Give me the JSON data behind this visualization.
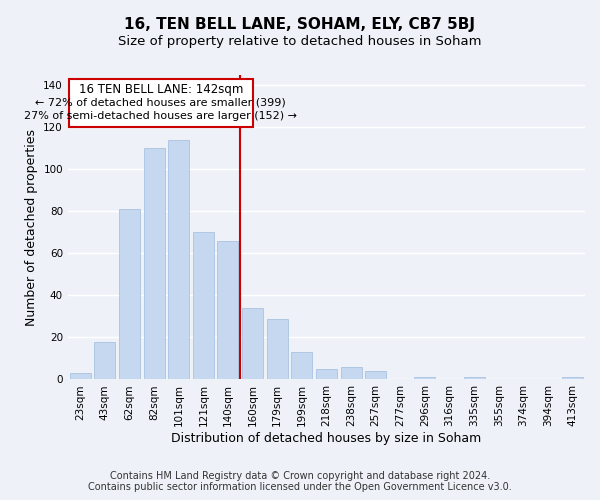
{
  "title": "16, TEN BELL LANE, SOHAM, ELY, CB7 5BJ",
  "subtitle": "Size of property relative to detached houses in Soham",
  "xlabel": "Distribution of detached houses by size in Soham",
  "ylabel": "Number of detached properties",
  "bar_labels": [
    "23sqm",
    "43sqm",
    "62sqm",
    "82sqm",
    "101sqm",
    "121sqm",
    "140sqm",
    "160sqm",
    "179sqm",
    "199sqm",
    "218sqm",
    "238sqm",
    "257sqm",
    "277sqm",
    "296sqm",
    "316sqm",
    "335sqm",
    "355sqm",
    "374sqm",
    "394sqm",
    "413sqm"
  ],
  "bar_values": [
    3,
    18,
    81,
    110,
    114,
    70,
    66,
    34,
    29,
    13,
    5,
    6,
    4,
    0,
    1,
    0,
    1,
    0,
    0,
    0,
    1
  ],
  "bar_color": "#c5d8f0",
  "bar_edge_color": "#a0bce0",
  "highlight_line_index": 6,
  "annotation_title": "16 TEN BELL LANE: 142sqm",
  "annotation_line1": "← 72% of detached houses are smaller (399)",
  "annotation_line2": "27% of semi-detached houses are larger (152) →",
  "annotation_box_facecolor": "#ffffff",
  "annotation_box_edgecolor": "#cc0000",
  "highlight_line_color": "#cc0000",
  "ylim": [
    0,
    145
  ],
  "yticks": [
    0,
    20,
    40,
    60,
    80,
    100,
    120,
    140
  ],
  "background_color": "#eef2f8",
  "grid_color": "#ffffff",
  "title_fontsize": 11,
  "subtitle_fontsize": 9.5,
  "axis_label_fontsize": 9,
  "tick_fontsize": 7.5,
  "annotation_title_fontsize": 8.5,
  "annotation_text_fontsize": 8,
  "footer_fontsize": 7
}
